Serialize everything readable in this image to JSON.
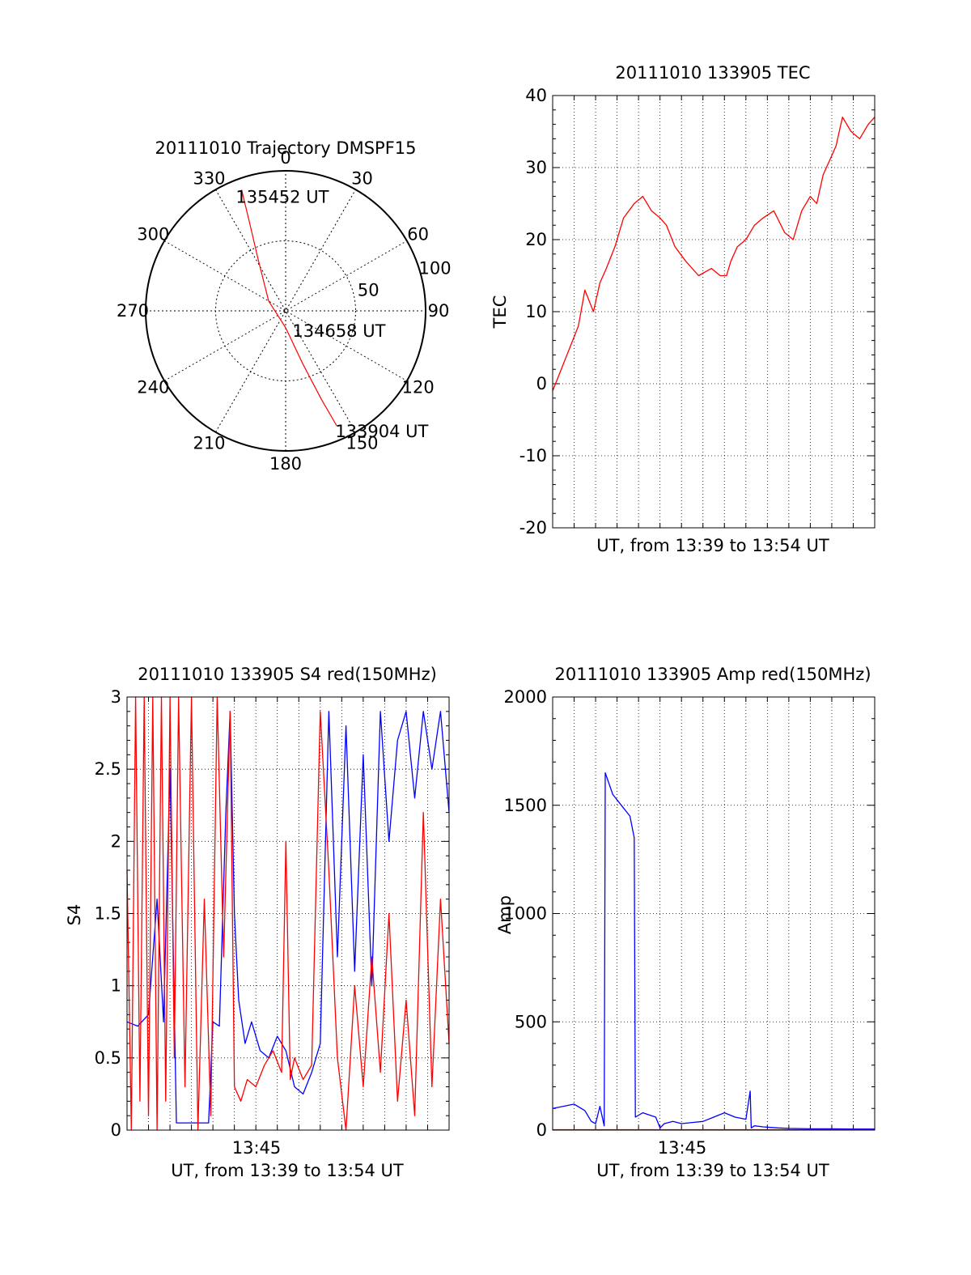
{
  "chart_data": [
    {
      "type": "polar",
      "title": "20111010 Trajectory DMSPF15",
      "angle_labels": [
        "0",
        "30",
        "60",
        "90",
        "120",
        "150",
        "180",
        "210",
        "240",
        "270",
        "300",
        "330"
      ],
      "radial_labels": [
        "50",
        "100"
      ],
      "series": [
        {
          "color": "#ff0000",
          "points": [
            {
              "azimuth": 340,
              "zenith": 92
            },
            {
              "azimuth": 338,
              "zenith": 70
            },
            {
              "azimuth": 332,
              "zenith": 42
            },
            {
              "azimuth": 300,
              "zenith": 14
            },
            {
              "azimuth": 180,
              "zenith": 12
            },
            {
              "azimuth": 162,
              "zenith": 40
            },
            {
              "azimuth": 158,
              "zenith": 68
            },
            {
              "azimuth": 156,
              "zenith": 90
            }
          ]
        }
      ],
      "annotations": [
        {
          "text": "135452 UT",
          "azimuth": 338,
          "zenith": 92
        },
        {
          "text": "134658 UT",
          "azimuth": 150,
          "zenith": 12
        },
        {
          "text": "133904 UT",
          "azimuth": 156,
          "zenith": 90
        }
      ]
    },
    {
      "type": "line",
      "title": "20111010 133905 TEC",
      "xlabel": "UT, from 13:39 to 13:54 UT",
      "ylabel": "TEC",
      "xlim": [
        0,
        15
      ],
      "ylim": [
        -20,
        40
      ],
      "yticks": [
        -20,
        -10,
        0,
        10,
        20,
        30,
        40
      ],
      "grid": true,
      "series": [
        {
          "color": "#ff0000",
          "x": [
            0,
            0.4,
            0.8,
            1.2,
            1.5,
            1.9,
            2.2,
            2.5,
            2.9,
            3.3,
            3.8,
            4.2,
            4.6,
            5.0,
            5.3,
            5.7,
            6.2,
            6.8,
            7.4,
            7.8,
            8.1,
            8.3,
            8.6,
            9.0,
            9.4,
            9.8,
            10.3,
            10.8,
            11.2,
            11.6,
            12.0,
            12.3,
            12.6,
            12.9,
            13.2,
            13.5,
            13.9,
            14.3,
            14.7,
            15.0
          ],
          "y": [
            -1,
            2,
            5,
            8,
            13,
            10,
            14,
            16,
            19,
            23,
            25,
            26,
            24,
            23,
            22,
            19,
            17,
            15,
            16,
            15,
            15,
            17,
            19,
            20,
            22,
            23,
            24,
            21,
            20,
            24,
            26,
            25,
            29,
            31,
            33,
            37,
            35,
            34,
            36,
            37
          ]
        }
      ]
    },
    {
      "type": "line",
      "title": "20111010 133905 S4 red(150MHz)",
      "xlabel": "UT, from 13:39 to 13:54 UT",
      "ylabel": "S4",
      "xtick_labels": [
        "13:45"
      ],
      "xlim": [
        0,
        15
      ],
      "ylim": [
        0,
        3
      ],
      "yticks": [
        0,
        0.5,
        1,
        1.5,
        2,
        2.5,
        3
      ],
      "grid": true,
      "series": [
        {
          "color": "#0000ff",
          "x": [
            0,
            0.5,
            1.0,
            1.4,
            1.7,
            2.0,
            2.3,
            2.5,
            2.7,
            3.2,
            3.8,
            4.0,
            4.3,
            4.6,
            4.8,
            5.0,
            5.2,
            5.5,
            5.8,
            6.2,
            6.6,
            7.0,
            7.4,
            7.8,
            8.2,
            8.6,
            9.0,
            9.4,
            9.8,
            10.2,
            10.6,
            11.0,
            11.4,
            11.8,
            12.2,
            12.6,
            13.0,
            13.4,
            13.8,
            14.2,
            14.6,
            15.0
          ],
          "y": [
            0.75,
            0.72,
            0.8,
            1.6,
            0.75,
            2.5,
            0.05,
            0.05,
            0.05,
            0.05,
            0.05,
            0.75,
            0.72,
            2.2,
            2.9,
            1.5,
            0.9,
            0.6,
            0.75,
            0.55,
            0.5,
            0.65,
            0.55,
            0.3,
            0.25,
            0.4,
            0.6,
            2.9,
            1.2,
            2.8,
            1.1,
            2.6,
            1.0,
            2.9,
            2.0,
            2.7,
            2.9,
            2.3,
            2.9,
            2.5,
            2.9,
            2.2
          ]
        },
        {
          "color": "#ff0000",
          "x": [
            0,
            0.2,
            0.4,
            0.6,
            0.8,
            1.0,
            1.2,
            1.4,
            1.6,
            1.8,
            2.0,
            2.2,
            2.4,
            2.7,
            3.0,
            3.3,
            3.6,
            3.9,
            4.2,
            4.5,
            4.8,
            5.0,
            5.3,
            5.6,
            6.0,
            6.4,
            6.8,
            7.2,
            7.4,
            7.6,
            7.8,
            8.2,
            8.6,
            9.0,
            9.4,
            9.8,
            10.2,
            10.6,
            11.0,
            11.4,
            11.8,
            12.2,
            12.6,
            13.0,
            13.4,
            13.8,
            14.2,
            14.6,
            15.0
          ],
          "y": [
            1.8,
            0.0,
            3.0,
            0.2,
            3.0,
            0.1,
            3.0,
            0.0,
            3.0,
            0.2,
            3.0,
            0.5,
            3.0,
            0.3,
            3.0,
            0.0,
            1.6,
            0.1,
            3.0,
            1.2,
            2.9,
            0.3,
            0.2,
            0.35,
            0.3,
            0.45,
            0.55,
            0.4,
            2.0,
            0.35,
            0.5,
            0.35,
            0.45,
            2.9,
            1.8,
            0.5,
            0.0,
            1.0,
            0.3,
            1.2,
            0.4,
            1.5,
            0.2,
            0.9,
            0.1,
            2.2,
            0.3,
            1.6,
            0.6
          ]
        }
      ]
    },
    {
      "type": "line",
      "title": "20111010 133905 Amp red(150MHz)",
      "xlabel": "UT, from 13:39 to 13:54 UT",
      "ylabel": "Amp",
      "xtick_labels": [
        "13:45"
      ],
      "xlim": [
        0,
        15
      ],
      "ylim": [
        0,
        2000
      ],
      "yticks": [
        0,
        500,
        1000,
        1500,
        2000
      ],
      "grid": true,
      "series": [
        {
          "color": "#0000ff",
          "x": [
            0,
            0.5,
            1.0,
            1.5,
            1.8,
            2.0,
            2.2,
            2.4,
            2.45,
            2.8,
            3.2,
            3.6,
            3.8,
            3.85,
            4.2,
            4.8,
            5.0,
            5.2,
            5.6,
            6.0,
            6.5,
            7.0,
            7.5,
            8.0,
            8.5,
            9.0,
            9.2,
            9.25,
            9.4,
            9.8,
            10.5,
            11.0,
            12.0,
            13.0,
            14.0,
            15.0
          ],
          "y": [
            100,
            110,
            120,
            90,
            40,
            30,
            110,
            20,
            1650,
            1550,
            1500,
            1450,
            1350,
            60,
            80,
            60,
            10,
            30,
            40,
            30,
            35,
            40,
            60,
            80,
            60,
            50,
            180,
            10,
            20,
            15,
            10,
            8,
            6,
            6,
            5,
            5
          ]
        },
        {
          "color": "#ff0000",
          "x": [
            0,
            2.4,
            3.8,
            15
          ],
          "y": [
            2,
            2,
            2,
            2
          ]
        }
      ]
    }
  ]
}
